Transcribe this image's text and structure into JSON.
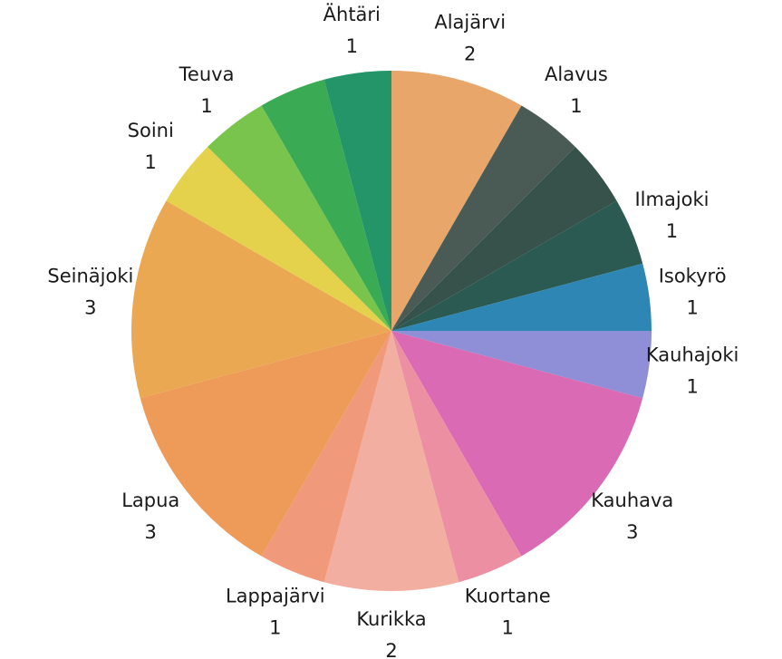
{
  "chart_data": {
    "type": "pie",
    "categories": [
      "Alajärvi",
      "Alavus",
      null,
      "Ilmajoki",
      "Isokyrö",
      "Kauhajoki",
      "Kauhava",
      "Kuortane",
      "Kurikka",
      "Lappajärvi",
      "Lapua",
      "Seinäjoki",
      "Soini",
      "Teuva",
      null,
      "Ähtäri"
    ],
    "values": [
      2,
      1,
      1,
      1,
      1,
      1,
      3,
      1,
      2,
      1,
      3,
      3,
      1,
      1,
      1,
      1
    ],
    "colors": [
      "#e8a66a",
      "#4a5b56",
      "#37524b",
      "#2b5a52",
      "#2e86b5",
      "#8e8fd6",
      "#d96ab3",
      "#ec8fa3",
      "#f2aea0",
      "#f1997b",
      "#ee9a58",
      "#eba852",
      "#e5d24c",
      "#79c44c",
      "#3aaa55",
      "#239568"
    ]
  }
}
